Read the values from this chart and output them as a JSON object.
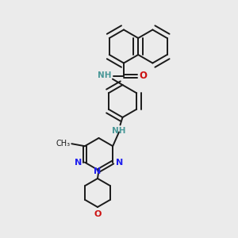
{
  "bg_color": "#ebebeb",
  "bond_color": "#1a1a1a",
  "N_color": "#2020ee",
  "O_color": "#cc1111",
  "NH_color": "#4a9898",
  "figsize": [
    3.0,
    3.0
  ],
  "dpi": 100,
  "xlim": [
    0,
    10
  ],
  "ylim": [
    0,
    10
  ]
}
